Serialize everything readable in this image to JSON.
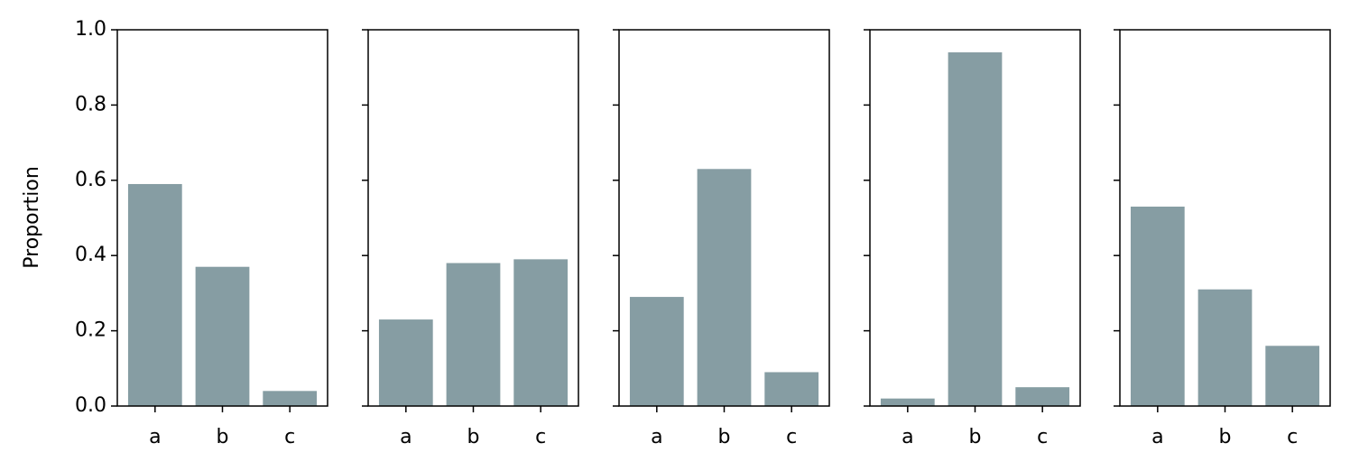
{
  "chart_data": [
    {
      "type": "bar",
      "ylabel": "Proportion",
      "categories": [
        "a",
        "b",
        "c"
      ],
      "values": [
        0.59,
        0.37,
        0.04
      ],
      "color": "#869da3",
      "ylim": [
        0,
        1
      ],
      "yticks": [
        {
          "value": 0,
          "label": "0.0"
        },
        0.2,
        0.4,
        0.6,
        0.8,
        {
          "value": 1,
          "label": "1.0"
        }
      ]
    },
    {
      "type": "bar",
      "categories": [
        "a",
        "b",
        "c"
      ],
      "values": [
        0.23,
        0.38,
        0.39
      ],
      "color": "#869da3"
    },
    {
      "type": "bar",
      "categories": [
        "a",
        "b",
        "c"
      ],
      "values": [
        0.29,
        0.63,
        0.09
      ],
      "color": "#869da3"
    },
    {
      "type": "bar",
      "categories": [
        "a",
        "b",
        "c"
      ],
      "values": [
        0.02,
        0.94,
        0.05
      ],
      "color": "#869da3"
    },
    {
      "type": "bar",
      "categories": [
        "a",
        "b",
        "c"
      ],
      "values": [
        0.53,
        0.31,
        0.16
      ],
      "color": "#869da3"
    }
  ]
}
